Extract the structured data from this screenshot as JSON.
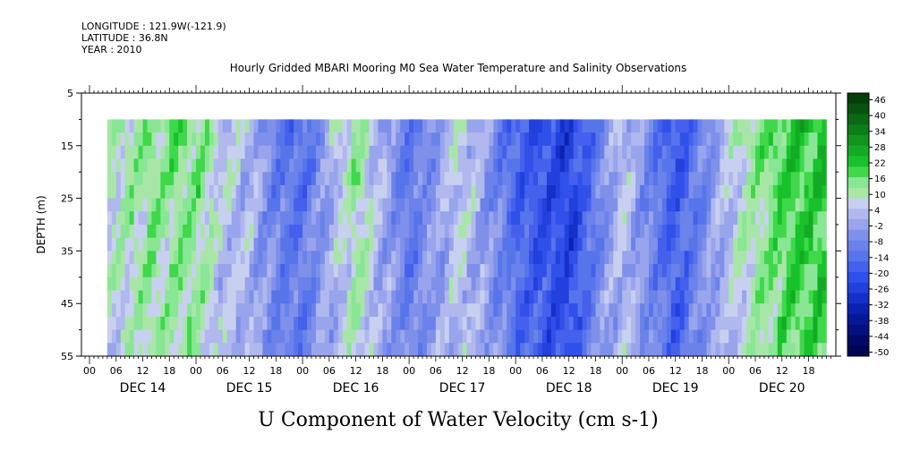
{
  "header": {
    "longitude": "LONGITUDE : 121.9W(-121.9)",
    "latitude": "LATITUDE : 36.8N",
    "year": "YEAR : 2010"
  },
  "chart_data": {
    "type": "heatmap",
    "title": "Hourly Gridded MBARI Mooring M0 Sea Water Temperature and Salinity Observations",
    "xlabel": "",
    "ylabel": "DEPTH (m)",
    "caption": "U Component of Water Velocity (cm s-1)",
    "x_hour_ticks": [
      "00",
      "06",
      "12",
      "18",
      "00",
      "06",
      "12",
      "18",
      "00",
      "06",
      "12",
      "18",
      "00",
      "06",
      "12",
      "18",
      "00",
      "06",
      "12",
      "18",
      "00",
      "06",
      "12",
      "18",
      "00",
      "06",
      "12",
      "18"
    ],
    "x_day_labels": [
      "DEC 14",
      "DEC 15",
      "DEC 16",
      "DEC 17",
      "DEC 18",
      "DEC 19",
      "DEC 20"
    ],
    "y_ticks": [
      5,
      15,
      25,
      35,
      45,
      55
    ],
    "ylim": [
      55,
      5
    ],
    "data_depth_range": [
      10,
      55
    ],
    "time_range_hours": [
      4,
      166
    ],
    "colorbar": {
      "labels": [
        "46",
        "40",
        "34",
        "28",
        "22",
        "16",
        "10",
        "4",
        "-2",
        "-8",
        "-14",
        "-20",
        "-26",
        "-32",
        "-38",
        "-44",
        "-50"
      ],
      "colors": [
        "#053d0b",
        "#08520f",
        "#0b6814",
        "#0e7e19",
        "#11951e",
        "#14ab24",
        "#17c22a",
        "#3fd84a",
        "#88e694",
        "#a8e6a8",
        "#c8d0f0",
        "#b0b8ee",
        "#98a4ec",
        "#7f90ea",
        "#6a82ea",
        "#5775ea",
        "#4460ec",
        "#3050ea",
        "#2240dc",
        "#1530c8",
        "#0b22b0",
        "#061898",
        "#03107e",
        "#000a66",
        "#000552"
      ]
    },
    "series_summary": [
      {
        "time_hours": 6,
        "depth_range": "10-55",
        "u_cm_s": 10
      },
      {
        "time_hours": 12,
        "depth_range": "10-55",
        "u_cm_s": 14
      },
      {
        "time_hours": 24,
        "depth_range": "10-30",
        "u_cm_s": 16
      },
      {
        "time_hours": 30,
        "depth_range": "10-55",
        "u_cm_s": 6
      },
      {
        "time_hours": 36,
        "depth_range": "10-55",
        "u_cm_s": 4
      },
      {
        "time_hours": 42,
        "depth_range": "10-55",
        "u_cm_s": -8
      },
      {
        "time_hours": 48,
        "depth_range": "10-55",
        "u_cm_s": -12
      },
      {
        "time_hours": 60,
        "depth_range": "10-55",
        "u_cm_s": 14
      },
      {
        "time_hours": 72,
        "depth_range": "10-55",
        "u_cm_s": -10
      },
      {
        "time_hours": 84,
        "depth_range": "10-55",
        "u_cm_s": 8
      },
      {
        "time_hours": 96,
        "depth_range": "10-55",
        "u_cm_s": -14
      },
      {
        "time_hours": 108,
        "depth_range": "10-55",
        "u_cm_s": -24
      },
      {
        "time_hours": 120,
        "depth_range": "10-55",
        "u_cm_s": 6
      },
      {
        "time_hours": 132,
        "depth_range": "10-55",
        "u_cm_s": -18
      },
      {
        "time_hours": 144,
        "depth_range": "10-55",
        "u_cm_s": 6
      },
      {
        "time_hours": 158,
        "depth_range": "10-55",
        "u_cm_s": 22
      }
    ]
  }
}
